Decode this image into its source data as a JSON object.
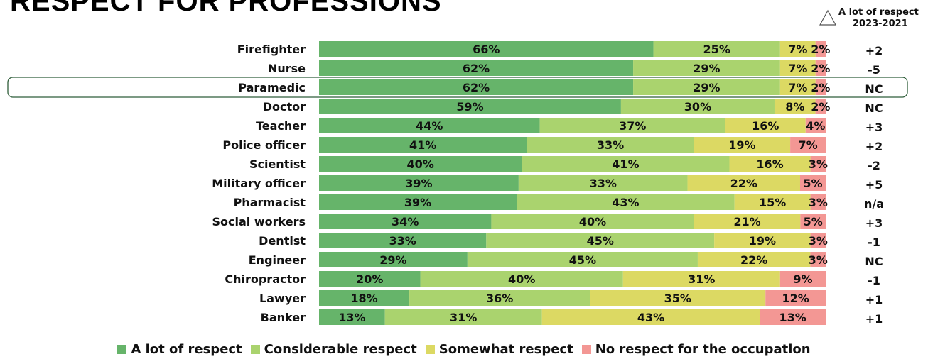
{
  "title": "RESPECT FOR PROFESSIONS",
  "change_header": {
    "line1": "A lot of respect",
    "line2": "2023-2021"
  },
  "colors": {
    "a_lot": "#66b46a",
    "considerable": "#aad36e",
    "somewhat": "#dcd963",
    "none": "#f39794",
    "highlight_border": "#2f5e3a"
  },
  "highlighted_row": "Paramedic",
  "chart_data": {
    "type": "bar",
    "orientation": "horizontal",
    "stacked": true,
    "title": "RESPECT FOR PROFESSIONS",
    "xlim": [
      0,
      100
    ],
    "categories": [
      "Firefighter",
      "Nurse",
      "Paramedic",
      "Doctor",
      "Teacher",
      "Police officer",
      "Scientist",
      "Military officer",
      "Pharmacist",
      "Social workers",
      "Dentist",
      "Engineer",
      "Chiropractor",
      "Lawyer",
      "Banker"
    ],
    "series": [
      {
        "name": "A lot of respect",
        "values": [
          66,
          62,
          62,
          59,
          44,
          41,
          40,
          39,
          39,
          34,
          33,
          29,
          20,
          18,
          13
        ]
      },
      {
        "name": "Considerable respect",
        "values": [
          25,
          29,
          29,
          30,
          37,
          33,
          41,
          33,
          43,
          40,
          45,
          45,
          40,
          36,
          31
        ]
      },
      {
        "name": "Somewhat respect",
        "values": [
          7,
          7,
          7,
          8,
          16,
          19,
          16,
          22,
          15,
          21,
          19,
          22,
          31,
          35,
          43
        ]
      },
      {
        "name": "No respect for the occupation",
        "values": [
          2,
          2,
          2,
          2,
          4,
          7,
          3,
          5,
          3,
          5,
          3,
          3,
          9,
          12,
          13
        ]
      }
    ],
    "change_2023_2021": [
      "+2",
      "-5",
      "NC",
      "NC",
      "+3",
      "+2",
      "-2",
      "+5",
      "n/a",
      "+3",
      "-1",
      "NC",
      "-1",
      "+1",
      "+1"
    ],
    "legend_position": "bottom"
  }
}
